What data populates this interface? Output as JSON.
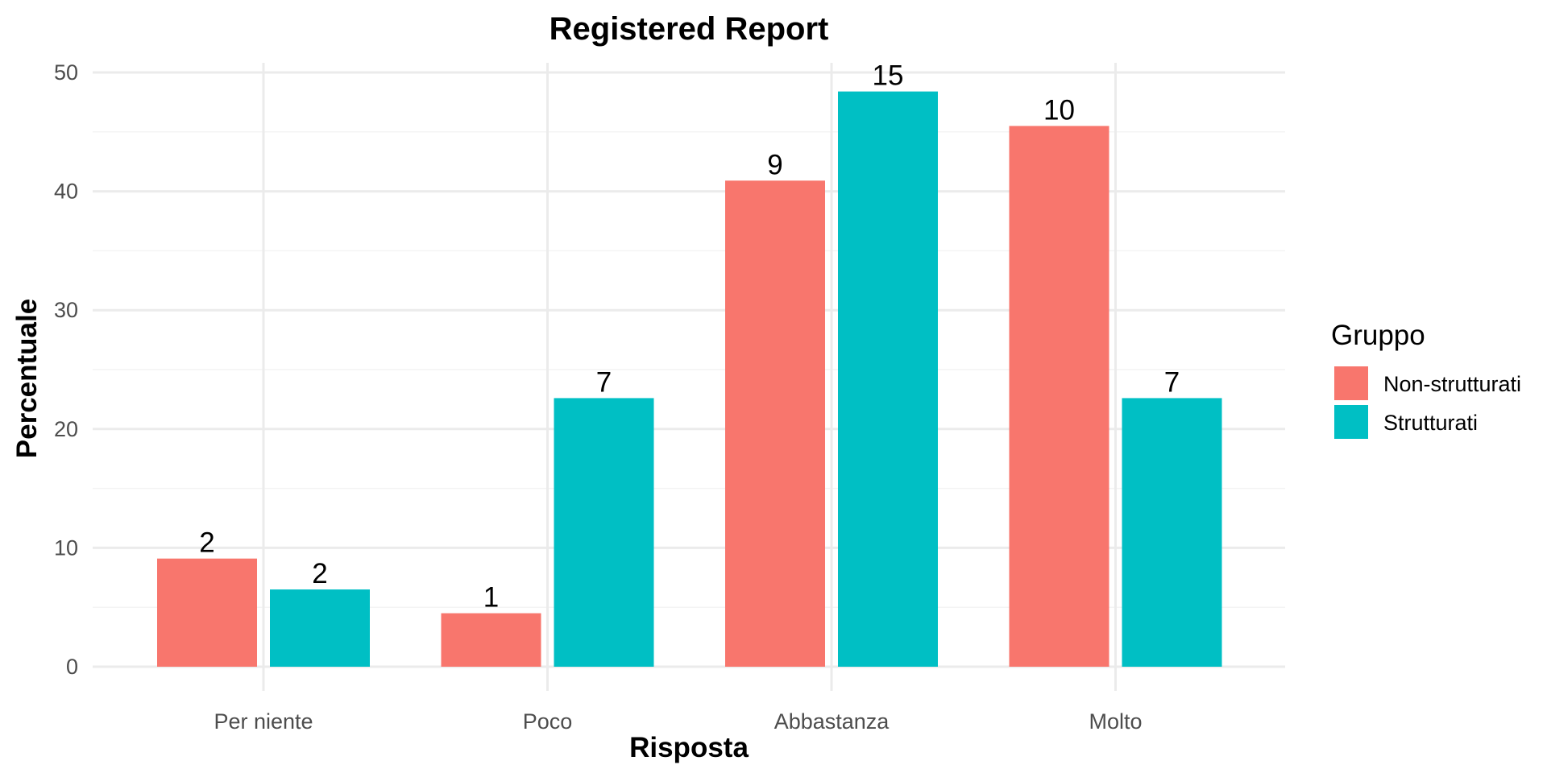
{
  "chart_data": {
    "type": "bar",
    "title": "Registered Report",
    "xlabel": "Risposta",
    "ylabel": "Percentuale",
    "categories": [
      "Per niente",
      "Poco",
      "Abbastanza",
      "Molto"
    ],
    "series": [
      {
        "name": "Non-strutturati",
        "color": "#F8766D",
        "values": [
          9.1,
          4.5,
          40.9,
          45.5
        ],
        "labels": [
          "2",
          "1",
          "9",
          "10"
        ]
      },
      {
        "name": "Strutturati",
        "color": "#00BFC4",
        "values": [
          6.5,
          22.6,
          48.4,
          22.6
        ],
        "labels": [
          "2",
          "7",
          "15",
          "7"
        ]
      }
    ],
    "ylim": [
      0,
      50
    ],
    "yticks": [
      "0",
      "10",
      "20",
      "30",
      "40",
      "50"
    ],
    "grid": true,
    "legend": {
      "title": "Gruppo",
      "position": "right"
    }
  }
}
